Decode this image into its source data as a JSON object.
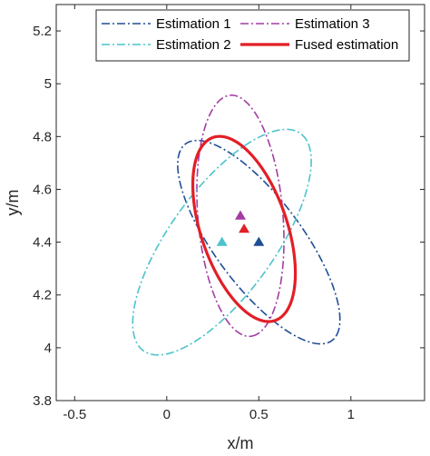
{
  "chart_data": {
    "type": "scatter",
    "xlabel": "x/m",
    "ylabel": "y/m",
    "xlim": [
      -0.6,
      1.4
    ],
    "ylim": [
      3.8,
      5.3
    ],
    "xticks": [
      -0.5,
      0,
      0.5,
      1
    ],
    "yticks": [
      3.8,
      4,
      4.2,
      4.4,
      4.6,
      4.8,
      5,
      5.2
    ],
    "xtick_labels": [
      "-0.5",
      "0",
      "0.5",
      "1"
    ],
    "ytick_labels": [
      "3.8",
      "4",
      "4.2",
      "4.4",
      "4.6",
      "4.8",
      "5",
      "5.2"
    ],
    "grid": false,
    "legend_position": "top",
    "series": [
      {
        "name": "Estimation 1",
        "kind": "ellipse",
        "line_style": "dash-dot",
        "color": "#1f4e96",
        "center": [
          0.5,
          4.4
        ],
        "semi_axes": [
          0.55,
          0.2
        ],
        "rotation_deg": -40
      },
      {
        "name": "Estimation 3",
        "kind": "ellipse",
        "line_style": "dash-dot",
        "color": "#a23ca4",
        "center": [
          0.4,
          4.5
        ],
        "semi_axes": [
          0.46,
          0.23
        ],
        "rotation_deg": -82
      },
      {
        "name": "Estimation 2",
        "kind": "ellipse",
        "line_style": "dash-dot",
        "color": "#4cc3cc",
        "center": [
          0.3,
          4.4
        ],
        "semi_axes": [
          0.6,
          0.24
        ],
        "rotation_deg": 40
      },
      {
        "name": "Fused estimation",
        "kind": "ellipse",
        "line_style": "solid",
        "color": "#e21f26",
        "center": [
          0.42,
          4.45
        ],
        "semi_axes": [
          0.39,
          0.22
        ],
        "rotation_deg": -58
      }
    ],
    "markers": [
      {
        "x": 0.3,
        "y": 4.4,
        "color": "#4cc3cc",
        "shape": "triangle"
      },
      {
        "x": 0.5,
        "y": 4.4,
        "color": "#1f4e96",
        "shape": "triangle"
      },
      {
        "x": 0.4,
        "y": 4.5,
        "color": "#a23ca4",
        "shape": "triangle"
      },
      {
        "x": 0.42,
        "y": 4.45,
        "color": "#e21f26",
        "shape": "triangle"
      }
    ],
    "legend": [
      {
        "label": "Estimation 1",
        "series": 0
      },
      {
        "label": "Estimation 3",
        "series": 1
      },
      {
        "label": "Estimation 2",
        "series": 2
      },
      {
        "label": "Fused estimation",
        "series": 3
      }
    ]
  }
}
